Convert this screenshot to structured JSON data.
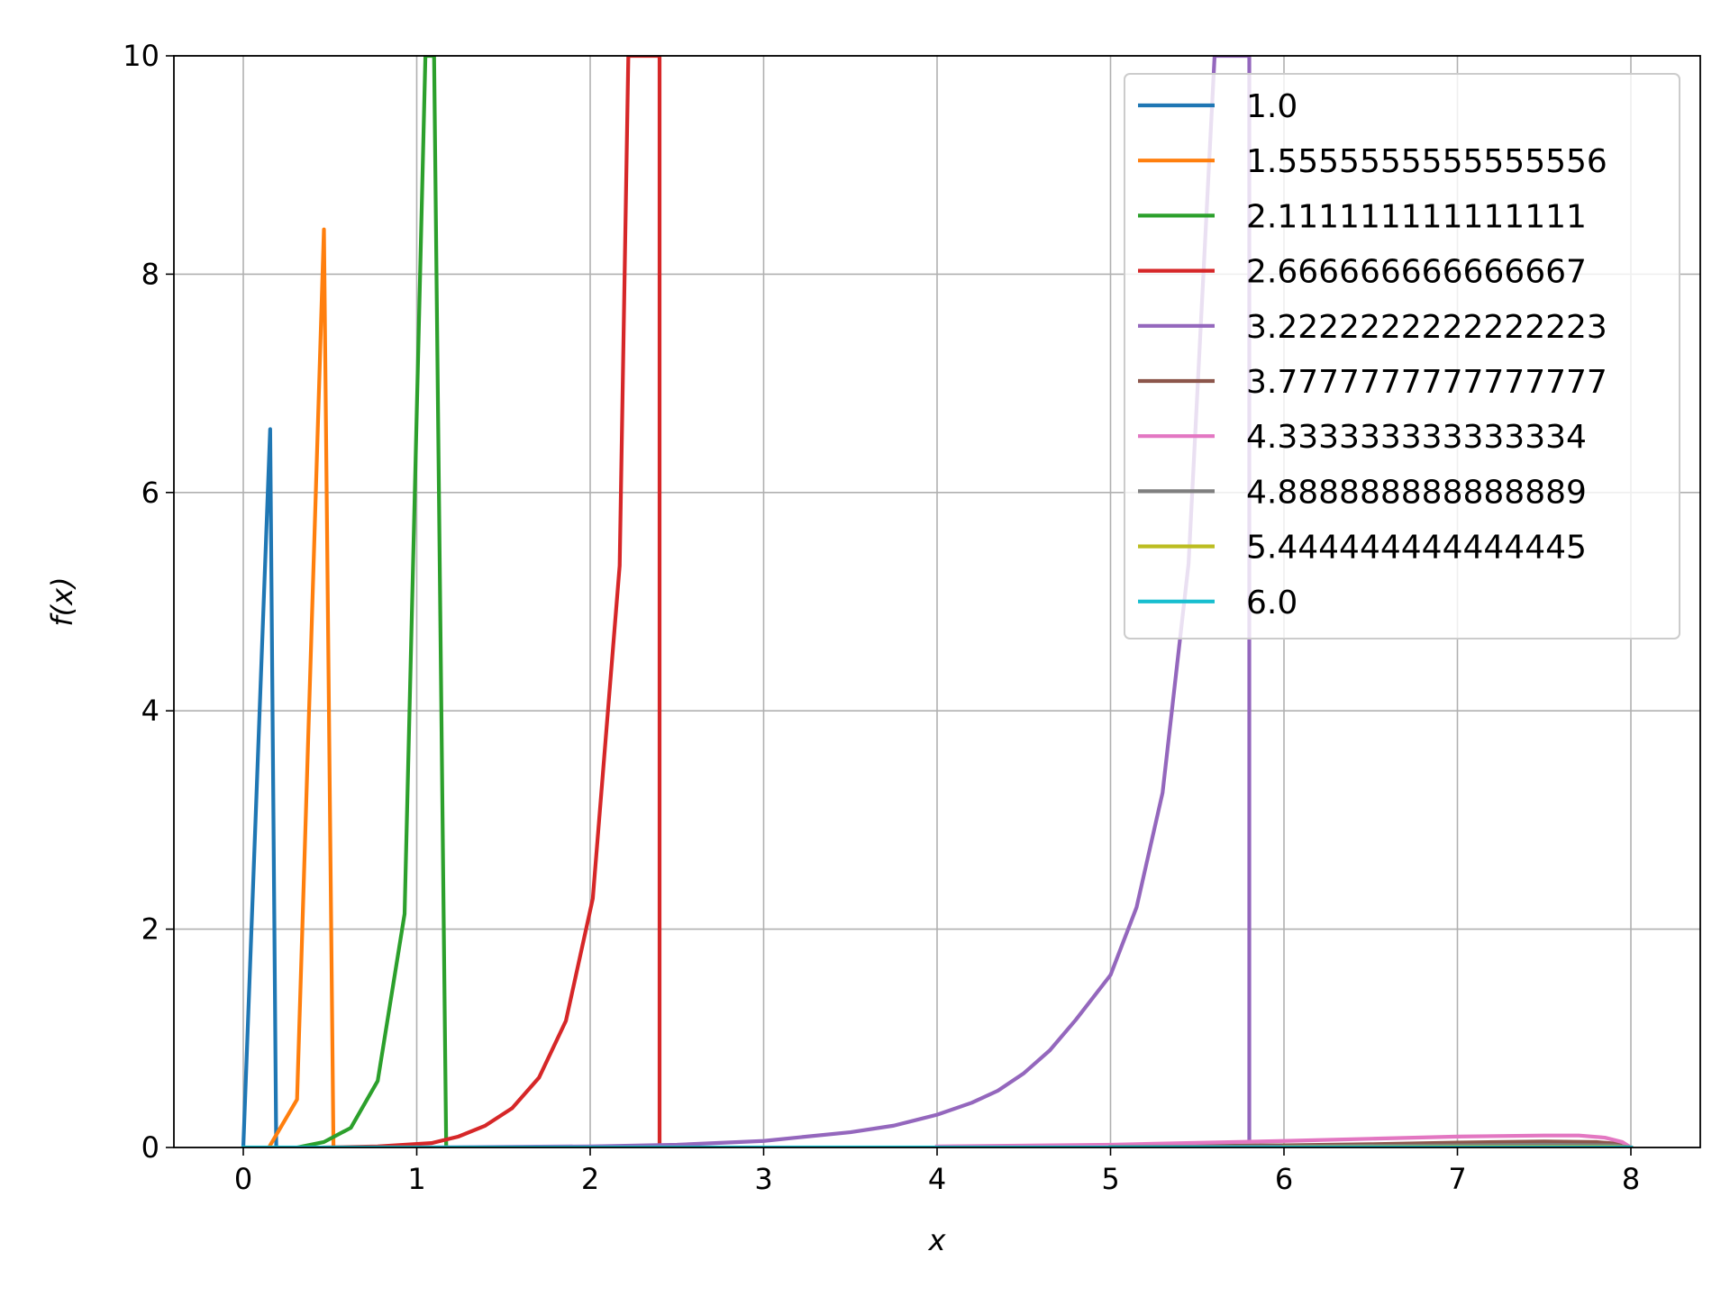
{
  "chart_data": {
    "type": "line",
    "title": "",
    "xlabel": "x",
    "ylabel": "f(x)",
    "xlim": [
      -0.4,
      8.4
    ],
    "ylim": [
      0,
      10
    ],
    "xticks": [
      0,
      1,
      2,
      3,
      4,
      5,
      6,
      7,
      8
    ],
    "yticks": [
      0,
      2,
      4,
      6,
      8,
      10
    ],
    "grid": true,
    "legend_position": "top-right",
    "series": [
      {
        "name": "1.0",
        "color": "#1f77b4",
        "points": [
          [
            0,
            0
          ],
          [
            0.155,
            6.58
          ],
          [
            0.19,
            0
          ]
        ]
      },
      {
        "name": "1.5555555555555556",
        "color": "#ff7f0e",
        "points": [
          [
            0.155,
            0.02
          ],
          [
            0.31,
            0.44
          ],
          [
            0.465,
            8.41
          ],
          [
            0.52,
            0
          ]
        ]
      },
      {
        "name": "2.111111111111111",
        "color": "#2ca02c",
        "points": [
          [
            0.31,
            0
          ],
          [
            0.465,
            0.05
          ],
          [
            0.62,
            0.18
          ],
          [
            0.775,
            0.61
          ],
          [
            0.93,
            2.14
          ],
          [
            1.05,
            10.0
          ],
          [
            1.1,
            10.0
          ],
          [
            1.17,
            0
          ]
        ]
      },
      {
        "name": "2.666666666666667",
        "color": "#d62728",
        "points": [
          [
            0.465,
            0
          ],
          [
            0.775,
            0.01
          ],
          [
            1.085,
            0.04
          ],
          [
            1.24,
            0.1
          ],
          [
            1.395,
            0.2
          ],
          [
            1.55,
            0.36
          ],
          [
            1.705,
            0.64
          ],
          [
            1.86,
            1.16
          ],
          [
            2.015,
            2.28
          ],
          [
            2.17,
            5.33
          ],
          [
            2.22,
            10.0
          ],
          [
            2.4,
            10.0
          ],
          [
            2.4,
            0
          ]
        ]
      },
      {
        "name": "3.2222222222222223",
        "color": "#9467bd",
        "points": [
          [
            1.0,
            0
          ],
          [
            1.5,
            0.005
          ],
          [
            2.0,
            0.01
          ],
          [
            2.5,
            0.025
          ],
          [
            3.0,
            0.06
          ],
          [
            3.5,
            0.14
          ],
          [
            3.75,
            0.2
          ],
          [
            4.0,
            0.3
          ],
          [
            4.2,
            0.41
          ],
          [
            4.35,
            0.52
          ],
          [
            4.5,
            0.68
          ],
          [
            4.65,
            0.89
          ],
          [
            4.8,
            1.17
          ],
          [
            5.0,
            1.58
          ],
          [
            5.15,
            2.2
          ],
          [
            5.3,
            3.25
          ],
          [
            5.45,
            5.35
          ],
          [
            5.6,
            10.0
          ],
          [
            5.8,
            10.0
          ],
          [
            5.8,
            0.06
          ]
        ]
      },
      {
        "name": "3.7777777777777777",
        "color": "#8c564b",
        "points": [
          [
            4.0,
            0.005
          ],
          [
            5.0,
            0.01
          ],
          [
            6.0,
            0.02
          ],
          [
            6.5,
            0.03
          ],
          [
            7.0,
            0.045
          ],
          [
            7.5,
            0.055
          ],
          [
            7.8,
            0.05
          ],
          [
            7.95,
            0.03
          ],
          [
            8.0,
            0
          ]
        ]
      },
      {
        "name": "4.333333333333334",
        "color": "#e377c2",
        "points": [
          [
            4.0,
            0.01
          ],
          [
            5.0,
            0.025
          ],
          [
            6.0,
            0.06
          ],
          [
            6.5,
            0.08
          ],
          [
            7.0,
            0.1
          ],
          [
            7.5,
            0.11
          ],
          [
            7.7,
            0.11
          ],
          [
            7.85,
            0.09
          ],
          [
            7.95,
            0.05
          ],
          [
            8.0,
            0
          ]
        ]
      },
      {
        "name": "4.888888888888889",
        "color": "#7f7f7f",
        "points": [
          [
            5.0,
            0.005
          ],
          [
            6.0,
            0.01
          ],
          [
            7.0,
            0.02
          ],
          [
            7.5,
            0.025
          ],
          [
            7.9,
            0.02
          ],
          [
            8.0,
            0
          ]
        ]
      },
      {
        "name": "5.444444444444445",
        "color": "#bcbd22",
        "points": [
          [
            6.0,
            0.002
          ],
          [
            7.0,
            0.005
          ],
          [
            7.9,
            0.005
          ],
          [
            8.0,
            0
          ]
        ]
      },
      {
        "name": "6.0",
        "color": "#17becf",
        "points": [
          [
            0,
            0
          ],
          [
            8.0,
            0
          ]
        ]
      }
    ]
  }
}
